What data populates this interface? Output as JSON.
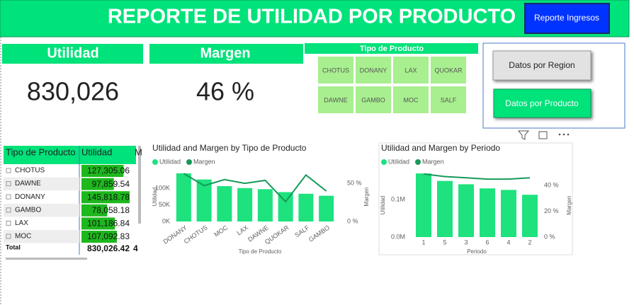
{
  "header": {
    "title": "REPORTE DE UTILIDAD POR PRODUCTO"
  },
  "buttons": [
    "Reporte Ingresos",
    "Datos por Region",
    "Datos por Producto"
  ],
  "cards": [
    {
      "label": "Utilidad",
      "value": "830,026"
    },
    {
      "label": "Margen",
      "value": "46 %"
    }
  ],
  "slicer": {
    "title": "Tipo de Producto",
    "items": [
      "CHOTUS",
      "DONANY",
      "LAX",
      "QUOKAR",
      "DAWNE",
      "GAMBO",
      "MOC",
      "SALF"
    ]
  },
  "table": {
    "columns": [
      "Tipo de Producto",
      "Utilidad",
      "M"
    ],
    "rows": [
      [
        "CHOTUS",
        {
          "value": 127305.06,
          "label": "127,305.06"
        }
      ],
      [
        "DAWNE",
        {
          "value": 97859.54,
          "label": "97,859.54"
        }
      ],
      [
        "DONANY",
        {
          "value": 145818.78,
          "label": "145,818.78"
        }
      ],
      [
        "GAMBO",
        {
          "value": 78058.18,
          "label": "78,058.18"
        }
      ],
      [
        "LAX",
        {
          "value": 101186.84,
          "label": "101,186.84"
        }
      ],
      [
        "MOC",
        {
          "value": 107092.83,
          "label": "107,092.83"
        }
      ]
    ],
    "total": [
      "Total",
      {
        "value": 830026.42,
        "label": "830,026.42"
      },
      "4"
    ]
  },
  "chart_data": [
    {
      "type": "combo",
      "title": "Utilidad and Margen by Tipo de Producto",
      "x_label": "Tipo de Producto",
      "y_label": "Utilidad",
      "y2_label": "Margen",
      "legend": "top-left",
      "categories": [
        "DONANY",
        "CHOTUS",
        "MOC",
        "LAX",
        "DAWNE",
        "QUOKAR",
        "SALF",
        "GAMBO"
      ],
      "series": [
        {
          "name": "Utilidad",
          "type": "bar",
          "color": "#1de27e",
          "values": [
            145818.78,
            127305.06,
            107092.83,
            101186.84,
            97859.54,
            89000,
            84000,
            78058.18
          ]
        },
        {
          "name": "Margen",
          "type": "line",
          "axis": "y2",
          "color": "#17995a",
          "values": [
            63,
            47,
            55,
            50,
            54,
            26,
            61,
            40
          ]
        }
      ],
      "ylim": [
        0,
        150000
      ],
      "yticks": [
        {
          "value": 0,
          "label": "0K"
        },
        {
          "value": 50000,
          "label": "50K"
        },
        {
          "value": 100000,
          "label": "100K"
        }
      ],
      "y2lim": [
        0,
        65
      ],
      "y2ticks": [
        {
          "value": 0,
          "label": "0 %"
        },
        {
          "value": 50,
          "label": "50 %"
        }
      ]
    },
    {
      "type": "combo",
      "title": "Utilidad and Margen by Periodo",
      "x_label": "Periodo",
      "y_label": "Utilidad",
      "y2_label": "Margen",
      "legend": "top-left",
      "categories": [
        "1",
        "5",
        "3",
        "6",
        "4",
        "2"
      ],
      "series": [
        {
          "name": "Utilidad",
          "type": "bar",
          "color": "#1de27e",
          "values": [
            170000,
            150000,
            141000,
            130000,
            126000,
            113000
          ]
        },
        {
          "name": "Margen",
          "type": "line",
          "axis": "y2",
          "color": "#17995a",
          "values": [
            49,
            47,
            46,
            45,
            45,
            46
          ]
        }
      ],
      "ylim": [
        0,
        172000
      ],
      "yticks": [
        {
          "value": 0,
          "label": "0.0M"
        },
        {
          "value": 100000,
          "label": "0.1M"
        }
      ],
      "y2lim": [
        0,
        50
      ],
      "y2ticks": [
        {
          "value": 0,
          "label": "0 %"
        },
        {
          "value": 20,
          "label": "20 %"
        },
        {
          "value": 40,
          "label": "40 %"
        }
      ]
    }
  ]
}
